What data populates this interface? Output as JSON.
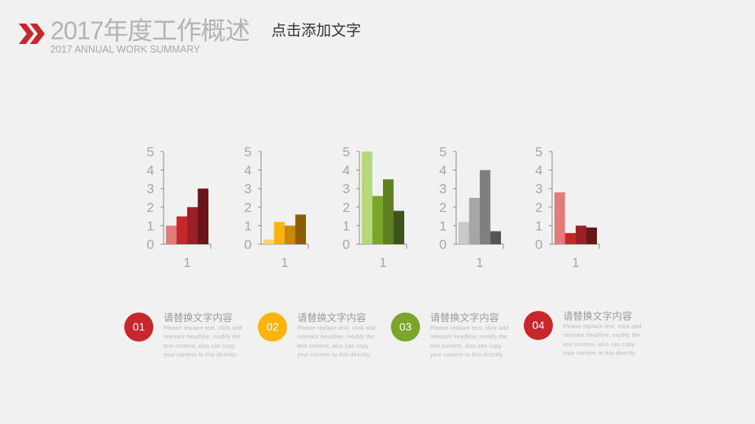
{
  "header": {
    "title": "2017年度工作概述",
    "overlay_text": "点击添加文字",
    "subtitle": "2017 ANNUAL WORK SUMMARY",
    "icon": "double-chevron-right-icon",
    "accent": "#c7262b"
  },
  "chart_data": [
    {
      "type": "bar",
      "categories": [
        "1"
      ],
      "ylim": [
        0,
        5
      ],
      "yticks": [
        "0",
        "1",
        "2",
        "3",
        "4",
        "5"
      ],
      "grid": false,
      "series": [
        {
          "values": [
            1
          ]
        },
        {
          "values": [
            1.5
          ]
        },
        {
          "values": [
            2
          ]
        },
        {
          "values": [
            3
          ]
        }
      ],
      "colors": [
        "#e37b7b",
        "#c7262b",
        "#9b1f24",
        "#6a1517"
      ]
    },
    {
      "type": "bar",
      "categories": [
        "1"
      ],
      "ylim": [
        0,
        5
      ],
      "yticks": [
        "0",
        "1",
        "2",
        "3",
        "4",
        "5"
      ],
      "grid": false,
      "series": [
        {
          "values": [
            0.25
          ]
        },
        {
          "values": [
            1.2
          ]
        },
        {
          "values": [
            1
          ]
        },
        {
          "values": [
            1.6
          ]
        }
      ],
      "colors": [
        "#fdd36a",
        "#fbb40d",
        "#c88a05",
        "#8a5e04"
      ]
    },
    {
      "type": "bar",
      "categories": [
        "1"
      ],
      "ylim": [
        0,
        5
      ],
      "yticks": [
        "0",
        "1",
        "2",
        "3",
        "4",
        "5"
      ],
      "grid": false,
      "series": [
        {
          "values": [
            5
          ]
        },
        {
          "values": [
            2.6
          ]
        },
        {
          "values": [
            3.5
          ]
        },
        {
          "values": [
            1.8
          ]
        }
      ],
      "colors": [
        "#b7d77e",
        "#7ba52a",
        "#5d7f22",
        "#3d5418"
      ]
    },
    {
      "type": "bar",
      "categories": [
        "1"
      ],
      "ylim": [
        0,
        5
      ],
      "yticks": [
        "0",
        "1",
        "2",
        "3",
        "4",
        "5"
      ],
      "grid": false,
      "series": [
        {
          "values": [
            1.2
          ]
        },
        {
          "values": [
            2.5
          ]
        },
        {
          "values": [
            4
          ]
        },
        {
          "values": [
            0.7
          ]
        }
      ],
      "colors": [
        "#c9c9c9",
        "#a6a6a6",
        "#7f7f7f",
        "#555555"
      ]
    },
    {
      "type": "bar",
      "categories": [
        "1"
      ],
      "ylim": [
        0,
        5
      ],
      "yticks": [
        "0",
        "1",
        "2",
        "3",
        "4",
        "5"
      ],
      "grid": false,
      "series": [
        {
          "values": [
            2.8
          ]
        },
        {
          "values": [
            0.6
          ]
        },
        {
          "values": [
            1
          ]
        },
        {
          "values": [
            0.9
          ]
        }
      ],
      "colors": [
        "#e37b7b",
        "#c7262b",
        "#9b1f24",
        "#6a1517"
      ]
    }
  ],
  "items": [
    {
      "num": "01",
      "title": "请替换文字内容",
      "body": "Please replace text, click add relevant headline, modify the text content, also can copy your content to this directly.",
      "color": "#c7262b"
    },
    {
      "num": "02",
      "title": "请替换文字内容",
      "body": "Please replace text, click add relevant headline, modify the text content, also can copy your content to this directly.",
      "color": "#fbb40d"
    },
    {
      "num": "03",
      "title": "请替换文字内容",
      "body": "Please replace text, click add relevant headline, modify the text content, also can copy your content to this directly.",
      "color": "#7ba52a"
    },
    {
      "num": "04",
      "title": "请替换文字内容",
      "body": "Please replace text, click add relevant headline, modify the text content, also can copy your content to this directly.",
      "color": "#c7262b"
    }
  ]
}
